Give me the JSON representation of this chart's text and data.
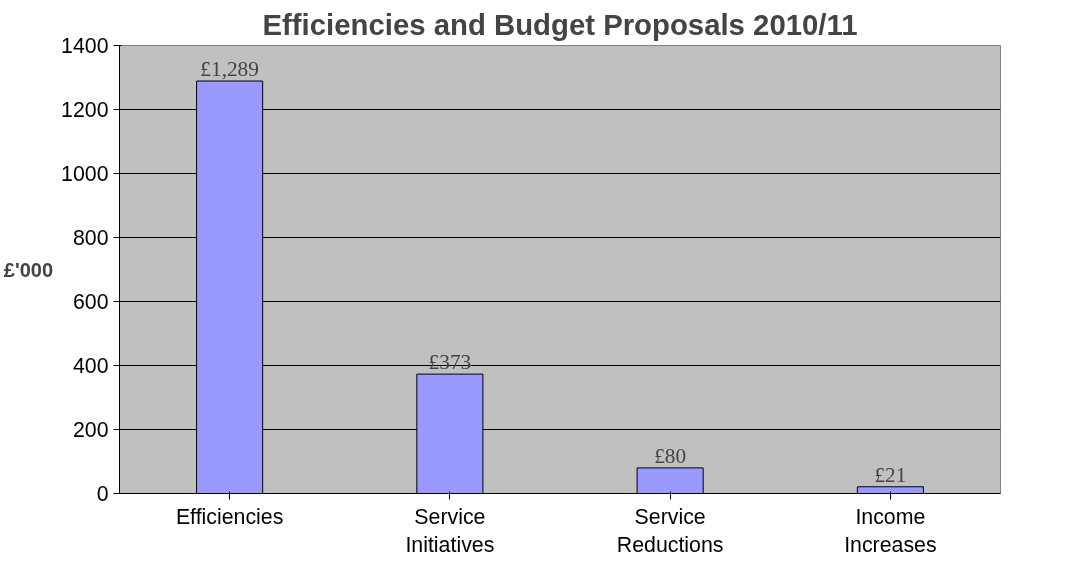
{
  "chart_data": {
    "type": "bar",
    "title": "Efficiencies and Budget Proposals 2010/11",
    "ylabel": "£'000",
    "categories": [
      "Efficiencies",
      "Service Initiatives",
      "Service Reductions",
      "Income Increases"
    ],
    "values": [
      1289,
      373,
      80,
      21
    ],
    "value_labels": [
      "£1,289",
      "£373",
      "£80",
      "£21"
    ],
    "color": "#9999ff",
    "ylim": [
      0,
      1400
    ],
    "yticks": [
      0,
      200,
      400,
      600,
      800,
      1000,
      1200,
      1400
    ],
    "grid": "y"
  }
}
